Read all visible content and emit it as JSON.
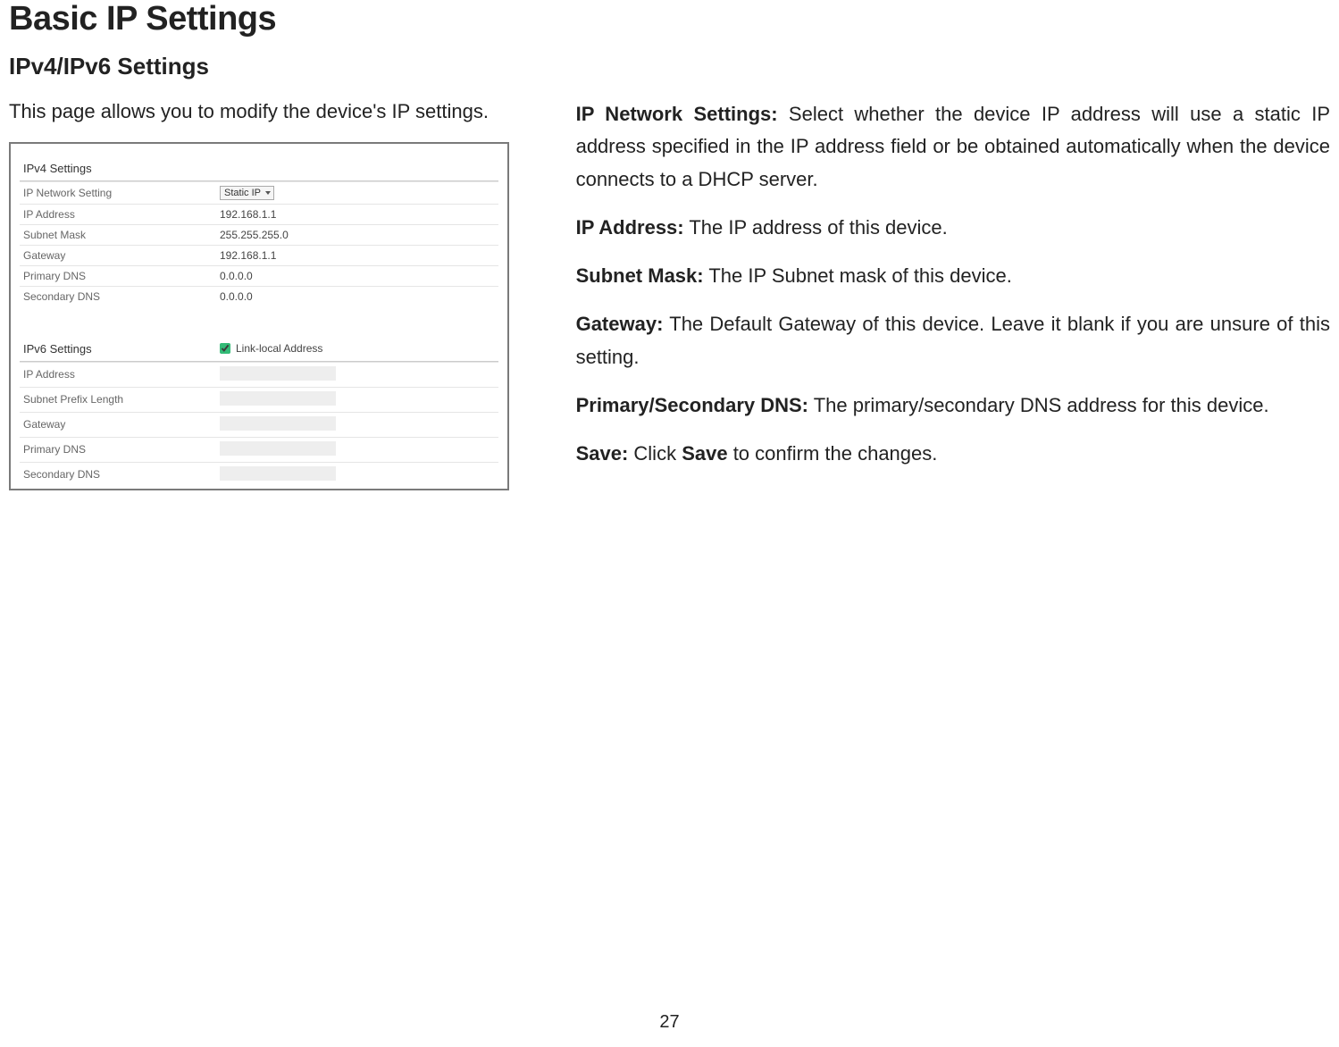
{
  "page": {
    "title": "Basic IP Settings",
    "subtitle": "IPv4/IPv6 Settings",
    "intro": "This page allows you to modify the device's IP settings.",
    "page_number": "27"
  },
  "screenshot": {
    "ipv4": {
      "header": "IPv4 Settings",
      "rows": [
        {
          "label": "IP Network Setting",
          "value": "Static IP",
          "is_select": true
        },
        {
          "label": "IP Address",
          "value": "192.168.1.1"
        },
        {
          "label": "Subnet Mask",
          "value": "255.255.255.0"
        },
        {
          "label": "Gateway",
          "value": "192.168.1.1"
        },
        {
          "label": "Primary DNS",
          "value": "0.0.0.0"
        },
        {
          "label": "Secondary DNS",
          "value": "0.0.0.0"
        }
      ]
    },
    "ipv6": {
      "header": "IPv6 Settings",
      "checkbox_label": "Link-local Address",
      "checkbox_checked": true,
      "rows": [
        {
          "label": "IP Address",
          "disabled": true
        },
        {
          "label": "Subnet Prefix Length",
          "disabled": true
        },
        {
          "label": "Gateway",
          "disabled": true
        },
        {
          "label": "Primary DNS",
          "disabled": true
        },
        {
          "label": "Secondary DNS",
          "disabled": true
        }
      ]
    }
  },
  "descriptions": {
    "ip_network": {
      "label": "IP Network Settings:",
      "text": " Select whether the device IP address will use a static IP address specified in the IP address field or be obtained automatically when the device connects to a DHCP server."
    },
    "ip_address": {
      "label": "IP Address:",
      "text": " The IP address of this device."
    },
    "subnet": {
      "label": "Subnet Mask:",
      "text": " The IP Subnet mask of this device."
    },
    "gateway": {
      "label": "Gateway:",
      "text": " The Default Gateway of this device. Leave it blank if you are unsure of this setting."
    },
    "dns": {
      "label": "Primary/Secondary DNS:",
      "text": " The primary/secondary DNS address for this device."
    },
    "save": {
      "label": "Save:",
      "text_pre": " Click ",
      "bold": "Save",
      "text_post": " to confirm the changes."
    }
  }
}
